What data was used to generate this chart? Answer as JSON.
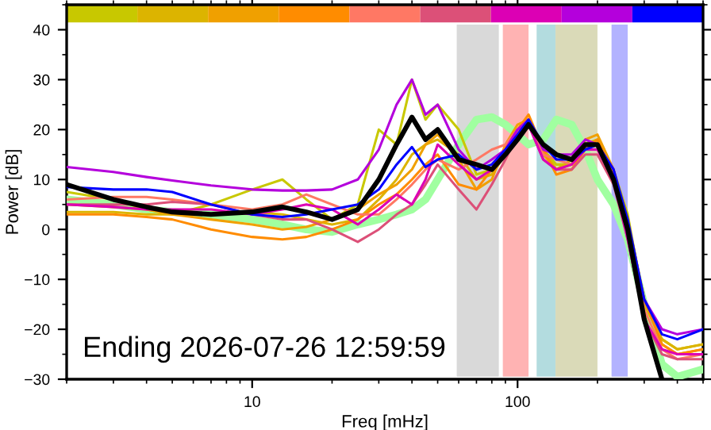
{
  "chart_data": {
    "type": "line",
    "xlabel": "Freq [mHz]",
    "ylabel": "Power [dB]",
    "log": "x",
    "xlim": [
      2,
      500
    ],
    "xticks": [
      10,
      100
    ],
    "ylim": [
      -30,
      45
    ],
    "yticks": [
      -30,
      -20,
      -10,
      0,
      10,
      20,
      30,
      40
    ],
    "grid": false,
    "legend": false,
    "annotations": [
      "Ending 2026-07-26 12:59:59"
    ],
    "bands": [
      {
        "axis": "x",
        "from": 59,
        "to": 85,
        "color": "#d9d9d9"
      },
      {
        "axis": "x",
        "from": 88,
        "to": 110,
        "color": "#ffb3b3"
      },
      {
        "axis": "x",
        "from": 118,
        "to": 139,
        "color": "#b3dcdf"
      },
      {
        "axis": "x",
        "from": 139,
        "to": 200,
        "color": "#dadab8"
      },
      {
        "axis": "x",
        "from": 226,
        "to": 260,
        "color": "#b3b3ff"
      }
    ],
    "x": [
      2,
      3,
      4,
      5,
      7,
      10,
      13,
      16,
      20,
      25,
      30,
      35,
      40,
      45,
      50,
      60,
      70,
      80,
      90,
      100,
      110,
      125,
      140,
      160,
      180,
      200,
      230,
      260,
      300,
      350,
      400,
      500
    ],
    "series": [
      {
        "color": "#a0ffa0",
        "values": [
          6,
          5,
          4,
          3.5,
          3,
          2,
          1,
          0,
          -0.5,
          1,
          2,
          3,
          4,
          6,
          10,
          17,
          22,
          22.5,
          21,
          19,
          17,
          18,
          22,
          21,
          16,
          10,
          5,
          -2,
          -15,
          -27,
          -29.5,
          -28
        ]
      },
      {
        "color": "#c8c800",
        "values": [
          7.5,
          6,
          4,
          3,
          5,
          8,
          10,
          6,
          2,
          5,
          20,
          17,
          30,
          22,
          25,
          20,
          11,
          12,
          16,
          20,
          21,
          16,
          13,
          13,
          17,
          18,
          12,
          3,
          -15,
          -22,
          -24,
          -23
        ]
      },
      {
        "color": "#dcb400",
        "values": [
          3.5,
          3.5,
          3,
          3,
          3,
          3.5,
          3,
          2,
          1,
          2,
          6,
          10,
          15,
          17,
          18,
          15,
          10,
          11,
          15,
          19,
          22,
          16,
          12,
          14,
          17,
          18,
          11,
          2,
          -14,
          -22,
          -24,
          -23
        ]
      },
      {
        "color": "#f0a000",
        "values": [
          5,
          4.5,
          4,
          3,
          2,
          1,
          0,
          0.5,
          2,
          4,
          7,
          9,
          12,
          17,
          19,
          14,
          8,
          10,
          17,
          21,
          22,
          15,
          12,
          13,
          18,
          19,
          12,
          2,
          -14,
          -23,
          -25,
          -24
        ]
      },
      {
        "color": "#ff8c00",
        "values": [
          3,
          3,
          2.5,
          2,
          0,
          -1.5,
          -2,
          -1.5,
          0,
          2,
          5,
          7,
          10,
          13,
          15,
          9,
          8,
          12,
          16,
          20,
          23,
          16,
          11,
          12,
          16,
          18,
          11,
          1,
          -14,
          -23,
          -25,
          -24
        ]
      },
      {
        "color": "#ff7864",
        "values": [
          6,
          6.5,
          6.5,
          6,
          5,
          4,
          5,
          7,
          5,
          3,
          3,
          6,
          9,
          12,
          14,
          12,
          14,
          16,
          17,
          20,
          21,
          15,
          14,
          13,
          16,
          16,
          10,
          0,
          -16,
          -24,
          -26,
          -25
        ]
      },
      {
        "color": "#dc5078",
        "values": [
          5,
          5,
          5,
          5.5,
          5,
          3,
          2,
          2,
          0,
          -2.5,
          0,
          3,
          5,
          9,
          13,
          8,
          4,
          9,
          14,
          19,
          21,
          14,
          12,
          12,
          15,
          15,
          9,
          -2,
          -18,
          -25,
          -26,
          -26
        ]
      },
      {
        "color": "#dc00b4",
        "values": [
          5,
          4.5,
          4,
          4,
          4,
          3,
          4,
          5,
          4,
          1,
          4,
          7,
          5,
          10,
          17,
          13,
          10,
          12,
          16,
          20,
          21,
          14,
          12,
          13,
          16,
          16,
          10,
          -2,
          -18,
          -24,
          -25,
          -25
        ]
      },
      {
        "color": "#b400dc",
        "values": [
          12.5,
          11.5,
          10.5,
          9.8,
          8.8,
          8,
          7.8,
          7.8,
          8,
          10,
          16,
          25,
          30,
          23,
          25,
          16,
          12,
          14,
          16,
          20,
          22,
          16,
          15,
          15,
          18,
          17,
          12,
          0,
          -14,
          -20,
          -21,
          -20
        ]
      },
      {
        "color": "#0000ff",
        "values": [
          8.5,
          8,
          8,
          7.5,
          5,
          3,
          2.5,
          3,
          4,
          5,
          8,
          13,
          16.5,
          12.5,
          14,
          15,
          12,
          13,
          16,
          19,
          22,
          17,
          14,
          14,
          16,
          17,
          12,
          2,
          -14,
          -21,
          -22,
          -20
        ]
      },
      {
        "color": "#000000",
        "values": [
          9,
          6,
          4.5,
          3.5,
          3,
          3.5,
          4.5,
          3.5,
          2,
          4,
          10,
          17,
          22.5,
          18,
          20,
          14,
          13,
          12,
          15,
          18,
          21,
          17,
          15,
          14,
          17,
          17,
          10,
          0,
          -18,
          -30,
          null,
          null
        ]
      }
    ]
  }
}
